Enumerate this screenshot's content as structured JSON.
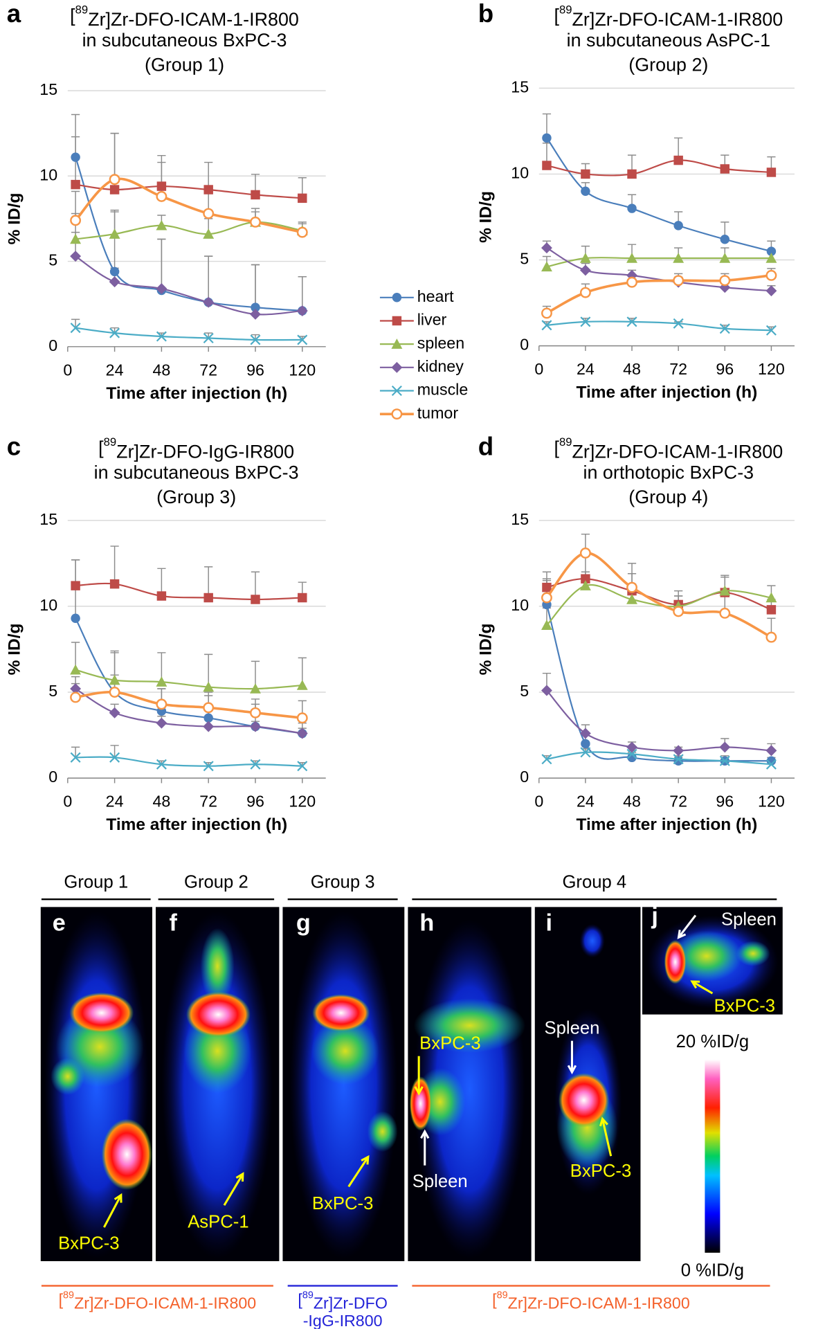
{
  "chart_data": [
    {
      "type": "line",
      "label": "a",
      "title_lines": [
        [
          "[",
          "89",
          "Zr]Zr-DFO-ICAM-1-IR800"
        ],
        [
          "in subcutaneous BxPC-3"
        ],
        [
          "(Group 1)"
        ]
      ],
      "x_label": "Time after injection (h)",
      "y_label": "% ID/g",
      "x": [
        4,
        24,
        48,
        72,
        96,
        120
      ],
      "xlim": [
        0,
        132
      ],
      "xticks": [
        0,
        24,
        48,
        72,
        96,
        120
      ],
      "ylim": [
        0,
        15
      ],
      "yticks": [
        0,
        5,
        10,
        15
      ],
      "grid": true,
      "series": [
        {
          "name": "heart",
          "color": "#4a7ebb",
          "marker": "circle",
          "values": [
            11.1,
            4.4,
            3.3,
            2.6,
            2.3,
            2.1
          ],
          "errors": [
            2.5,
            3.5,
            3.0,
            2.7,
            2.5,
            2.0
          ]
        },
        {
          "name": "liver",
          "color": "#be4b48",
          "marker": "square",
          "values": [
            9.5,
            9.2,
            9.4,
            9.2,
            8.9,
            8.7
          ],
          "errors": [
            2.8,
            3.3,
            1.8,
            1.6,
            1.2,
            1.2
          ]
        },
        {
          "name": "spleen",
          "color": "#98b954",
          "marker": "triangle",
          "values": [
            6.3,
            6.6,
            7.1,
            6.6,
            7.3,
            6.8
          ],
          "errors": [
            1.5,
            1.4,
            0.6,
            0.9,
            0.6,
            0.4
          ]
        },
        {
          "name": "kidney",
          "color": "#7d5fa0",
          "marker": "diamond",
          "values": [
            5.3,
            3.8,
            3.4,
            2.6,
            1.9,
            2.1
          ],
          "errors": [
            1.4,
            0.8,
            2.9,
            2.7,
            2.9,
            2.0
          ]
        },
        {
          "name": "muscle",
          "color": "#4bacc6",
          "marker": "x",
          "values": [
            1.1,
            0.8,
            0.6,
            0.5,
            0.4,
            0.4
          ],
          "errors": [
            0.5,
            0.3,
            0.2,
            0.3,
            0.3,
            0.2
          ]
        },
        {
          "name": "tumor",
          "color": "#f79646",
          "marker": "open-circle",
          "values": [
            7.4,
            9.8,
            8.8,
            7.8,
            7.3,
            6.7
          ],
          "errors": [
            1.7,
            2.7,
            2.0,
            1.5,
            0.8,
            0.6
          ]
        }
      ]
    },
    {
      "type": "line",
      "label": "b",
      "title_lines": [
        [
          "[",
          "89",
          "Zr]Zr-DFO-ICAM-1-IR800"
        ],
        [
          "in subcutaneous AsPC-1"
        ],
        [
          "(Group 2)"
        ]
      ],
      "x_label": "Time after injection (h)",
      "y_label": "% ID/g",
      "x": [
        4,
        24,
        48,
        72,
        96,
        120
      ],
      "xlim": [
        0,
        132
      ],
      "xticks": [
        0,
        24,
        48,
        72,
        96,
        120
      ],
      "ylim": [
        0,
        15
      ],
      "yticks": [
        0,
        5,
        10,
        15
      ],
      "grid": true,
      "series": [
        {
          "values": [
            12.1,
            9.0,
            8.0,
            7.0,
            6.2,
            5.5
          ],
          "errors": [
            1.4,
            0.5,
            0.8,
            0.8,
            1.0,
            0.6
          ]
        },
        {
          "values": [
            10.5,
            10.0,
            10.0,
            10.8,
            10.3,
            10.1
          ],
          "errors": [
            1.3,
            0.6,
            1.1,
            1.3,
            0.8,
            0.9
          ]
        },
        {
          "values": [
            4.6,
            5.1,
            5.1,
            5.1,
            5.1,
            5.1
          ],
          "errors": [
            0.6,
            0.7,
            0.8,
            0.6,
            0.6,
            0.5
          ]
        },
        {
          "values": [
            5.7,
            4.4,
            4.1,
            3.7,
            3.4,
            3.2
          ],
          "errors": [
            0.4,
            0.4,
            0.3,
            0.3,
            0.3,
            0.3
          ]
        },
        {
          "values": [
            1.2,
            1.4,
            1.4,
            1.3,
            1.0,
            0.9
          ],
          "errors": [
            0.2,
            0.2,
            0.2,
            0.1,
            0.2,
            0.2
          ]
        },
        {
          "values": [
            1.9,
            3.1,
            3.7,
            3.8,
            3.8,
            4.1
          ],
          "errors": [
            0.4,
            0.5,
            0.4,
            0.4,
            0.4,
            0.4
          ]
        }
      ]
    },
    {
      "type": "line",
      "label": "c",
      "title_lines": [
        [
          "[",
          "89",
          "Zr]Zr-DFO-IgG-IR800"
        ],
        [
          "in subcutaneous BxPC-3"
        ],
        [
          "(Group 3)"
        ]
      ],
      "x_label": "Time after injection (h)",
      "y_label": "% ID/g",
      "x": [
        4,
        24,
        48,
        72,
        96,
        120
      ],
      "xlim": [
        0,
        132
      ],
      "xticks": [
        0,
        24,
        48,
        72,
        96,
        120
      ],
      "ylim": [
        0,
        15
      ],
      "yticks": [
        0,
        5,
        10,
        15
      ],
      "grid": true,
      "series": [
        {
          "values": [
            9.3,
            5.0,
            3.9,
            3.5,
            3.0,
            2.6
          ],
          "errors": [
            3.4,
            2.4,
            1.3,
            1.3,
            1.3,
            0.6
          ]
        },
        {
          "values": [
            11.2,
            11.3,
            10.6,
            10.5,
            10.4,
            10.5
          ],
          "errors": [
            1.5,
            2.2,
            1.6,
            1.8,
            1.6,
            0.9
          ]
        },
        {
          "values": [
            6.3,
            5.7,
            5.6,
            5.3,
            5.2,
            5.4
          ],
          "errors": [
            1.6,
            1.6,
            1.7,
            1.9,
            1.6,
            1.6
          ]
        },
        {
          "values": [
            5.2,
            3.8,
            3.2,
            3.0,
            3.0,
            2.6
          ],
          "errors": [
            0.7,
            0.5,
            0.4,
            0.4,
            0.3,
            0.3
          ]
        },
        {
          "values": [
            1.2,
            1.2,
            0.8,
            0.7,
            0.8,
            0.7
          ],
          "errors": [
            0.6,
            0.7,
            0.2,
            0.2,
            0.2,
            0.2
          ]
        },
        {
          "values": [
            4.7,
            5.0,
            4.3,
            4.1,
            3.8,
            3.5
          ],
          "errors": [
            0.8,
            1.0,
            0.9,
            0.9,
            0.8,
            1.0
          ]
        }
      ]
    },
    {
      "type": "line",
      "label": "d",
      "title_lines": [
        [
          "[",
          "89",
          "Zr]Zr-DFO-ICAM-1-IR800"
        ],
        [
          "in orthotopic BxPC-3"
        ],
        [
          "(Group 4)"
        ]
      ],
      "x_label": "Time after injection (h)",
      "y_label": "% ID/g",
      "x": [
        4,
        24,
        48,
        72,
        96,
        120
      ],
      "xlim": [
        0,
        132
      ],
      "xticks": [
        0,
        24,
        48,
        72,
        96,
        120
      ],
      "ylim": [
        0,
        15
      ],
      "yticks": [
        0,
        5,
        10,
        15
      ],
      "grid": true,
      "series": [
        {
          "values": [
            10.1,
            2.0,
            1.2,
            1.0,
            1.0,
            1.0
          ],
          "errors": [
            1.5,
            0.6,
            0.3,
            0.3,
            0.3,
            0.2
          ]
        },
        {
          "values": [
            11.1,
            11.6,
            10.9,
            10.1,
            10.8,
            9.8
          ],
          "errors": [
            0.9,
            1.6,
            1.0,
            0.8,
            1.0,
            0.6
          ]
        },
        {
          "values": [
            8.9,
            11.2,
            10.4,
            10.0,
            10.9,
            10.5
          ],
          "errors": [
            1.0,
            0.8,
            0.9,
            0.6,
            0.8,
            0.7
          ]
        },
        {
          "values": [
            5.1,
            2.6,
            1.8,
            1.6,
            1.8,
            1.6
          ],
          "errors": [
            1.0,
            0.5,
            0.3,
            0.2,
            0.5,
            0.4
          ]
        },
        {
          "values": [
            1.1,
            1.5,
            1.4,
            1.1,
            1.0,
            0.8
          ],
          "errors": [
            0.2,
            0.2,
            0.2,
            0.1,
            0.2,
            0.2
          ]
        },
        {
          "values": [
            10.5,
            13.1,
            11.1,
            9.7,
            9.6,
            8.2
          ],
          "errors": [
            1.0,
            1.1,
            1.4,
            0.9,
            1.0,
            1.1
          ]
        }
      ]
    }
  ],
  "images": {
    "group_labels": [
      "Group 1",
      "Group 2",
      "Group 3",
      "Group 4"
    ],
    "panel_labels": [
      "e",
      "f",
      "g",
      "h",
      "i",
      "j"
    ],
    "annotations": [
      {
        "text": "BxPC-3",
        "color": "#ffff00"
      },
      {
        "text": "AsPC-1",
        "color": "#ffff00"
      },
      {
        "text": "BxPC-3",
        "color": "#ffff00"
      },
      {
        "text": "BxPC-3",
        "color": "#ffff00"
      },
      {
        "text": "Spleen",
        "color": "#ffffff"
      },
      {
        "text": "Spleen",
        "color": "#ffffff"
      },
      {
        "text": "BxPC-3",
        "color": "#ffff00"
      },
      {
        "text": "Spleen",
        "color": "#ffffff"
      },
      {
        "text": "BxPC-3",
        "color": "#ffff00"
      }
    ],
    "colorbar_labels": [
      "20 %ID/g",
      "0 %ID/g"
    ],
    "captions": [
      {
        "color": "#f4602a",
        "lines": [
          [
            "[",
            "89",
            "Zr]Zr-DFO-ICAM-1-IR800"
          ]
        ]
      },
      {
        "color": "#2323d8",
        "lines": [
          [
            "[",
            "89",
            "Zr]Zr-DFO"
          ],
          [
            "-IgG-IR800"
          ]
        ]
      },
      {
        "color": "#f4602a",
        "lines": [
          [
            "[",
            "89",
            "Zr]Zr-DFO-ICAM-1-IR800"
          ]
        ]
      }
    ]
  }
}
